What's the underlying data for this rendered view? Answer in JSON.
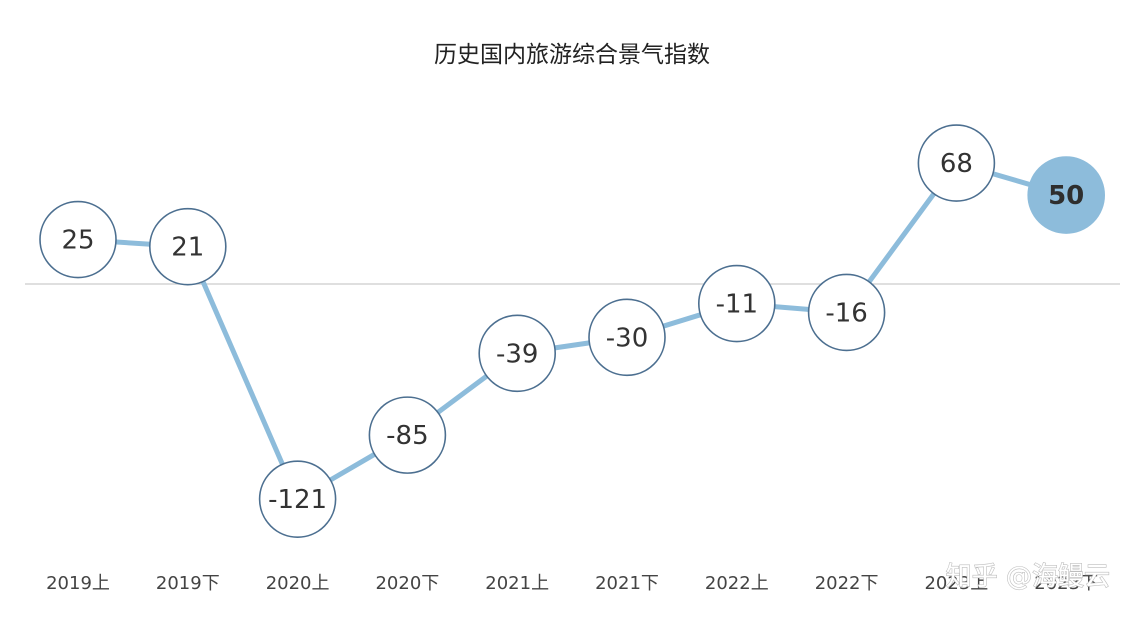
{
  "chart_data": {
    "type": "line",
    "title": "历史国内旅游综合景气指数",
    "categories": [
      "2019上",
      "2019下",
      "2020上",
      "2020下",
      "2021上",
      "2021下",
      "2022上",
      "2022下",
      "2023上",
      "2023下"
    ],
    "values": [
      25,
      21,
      -121,
      -85,
      -39,
      -30,
      -11,
      -16,
      68,
      50
    ],
    "data_labels": [
      "25",
      "21",
      "-121",
      "-85",
      "-39",
      "-30",
      "-11",
      "-16",
      "68",
      "50"
    ],
    "highlight_index": 9,
    "baseline": 0,
    "ylim": [
      -130,
      75
    ],
    "grid": false,
    "legend": "none",
    "colors": {
      "line": "#8dbcdb",
      "marker_border": "#4c6f90",
      "marker_fill": "#ffffff",
      "highlight_fill": "#8dbcdb",
      "baseline": "#cccccc"
    }
  },
  "watermark": "知乎 @海鳗云"
}
